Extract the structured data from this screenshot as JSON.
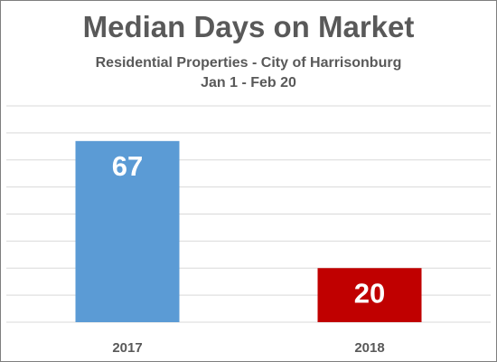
{
  "chart_data": {
    "type": "bar",
    "title": "Median Days on Market",
    "subtitle_line1": "Residential Properties - City of Harrisonburg",
    "subtitle_line2": "Jan 1 - Feb 20",
    "categories": [
      "2017",
      "2018"
    ],
    "values": [
      67,
      20
    ],
    "bar_colors": [
      "#5b9bd5",
      "#c00000"
    ],
    "data_label_color": "#ffffff",
    "xlabel": "",
    "ylabel": "",
    "ylim": [
      0,
      80
    ],
    "y_gridline_step": 10,
    "grid": true,
    "y_tick_labels_shown": false,
    "legend": "none",
    "gridline_color": "#d9d9d9",
    "text_color": "#595959"
  }
}
